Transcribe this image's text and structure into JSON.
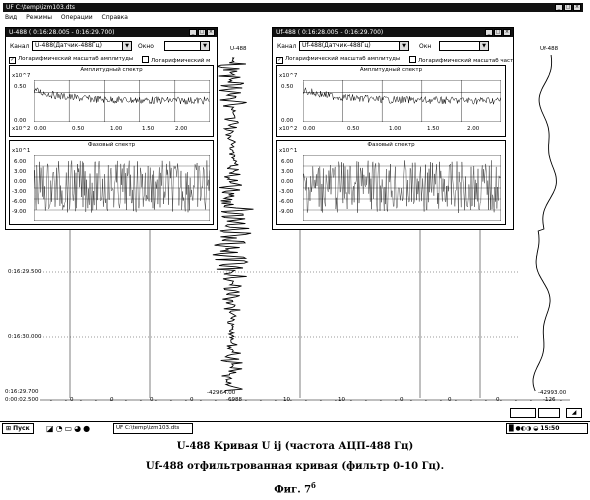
{
  "window": {
    "title": "UF C:\\temp\\izm103.dts",
    "controls": [
      "_",
      "□",
      "×"
    ]
  },
  "menu": [
    "Вид",
    "Режимы",
    "Операции",
    "Справка"
  ],
  "window_left": {
    "title": "U-488 ( 0:16:28.005 - 0:16:29.700)",
    "channel_label": "Канал",
    "channel_value": "U-488(Датчик-488Гц)",
    "window_label": "Окно",
    "cb_log_amp": "Логарифмический масштаб амплитуды",
    "cb_log_freq": "Логарифмический м",
    "amp_panel_title": "Амплитудный спектр",
    "amp_exp": "x10^7",
    "amp_y_tick": "0.50",
    "amp_y_zero": "0.00",
    "x_exp": "x10^2",
    "x_ticks": [
      "0.00",
      "0.50",
      "1.00",
      "1.50",
      "2.00"
    ],
    "phase_panel_title": "Фазовый спектр",
    "phase_exp": "x10^1",
    "phase_y_ticks": [
      "6.00",
      "3.00",
      "0.00",
      "-3.00",
      "-6.00",
      "-9.00"
    ]
  },
  "window_right": {
    "title": "Uf-488 ( 0:16:28.005 - 0:16:29.700)",
    "channel_label": "Канал",
    "channel_value": "Uf-488(Датчик-488Гц)",
    "window_label": "Окн",
    "cb_log_amp": "Логарифмический масштаб амплитуды",
    "cb_log_freq": "Логарифмический масштаб част",
    "amp_panel_title": "Амплитудный спектр",
    "amp_exp": "x10^7",
    "amp_y_tick": "0.50",
    "amp_y_zero": "0.00",
    "x_exp": "x10^2",
    "x_ticks": [
      "0.00",
      "0.50",
      "1.00",
      "1.50",
      "2.00"
    ],
    "phase_panel_title": "Фазовый спектр",
    "phase_exp": "x10^1",
    "phase_y_ticks": [
      "6.00",
      "3.00",
      "0.00",
      "-3.00",
      "-6.00",
      "-9.00"
    ]
  },
  "signals": {
    "u_label": "U-488",
    "uf_label": "Uf-488",
    "u_min": "-42964.00",
    "uf_min": "-42993.00",
    "u_min_x": "-6988",
    "uf_min_x": "-126"
  },
  "time_axis": {
    "labels": [
      "0:16:29.500",
      "0:16:30.000",
      "0:16:29.700",
      "0:00:02.500"
    ],
    "scale_values": [
      "0",
      "0",
      "0",
      "0",
      "10",
      "10",
      "0",
      "0",
      "0"
    ]
  },
  "taskbar": {
    "start": "Пуск",
    "task": "UF C:\\temp\\izm103.dts",
    "clock": "15:50"
  },
  "captions": {
    "line1": "U-488 Кривая U ij (частота АЦП-488 Гц)",
    "line2": "Uf-488 отфильтрованная кривая (фильтр 0-10 Гц).",
    "fig": "Фиг. 7",
    "fig_sup": "б"
  }
}
